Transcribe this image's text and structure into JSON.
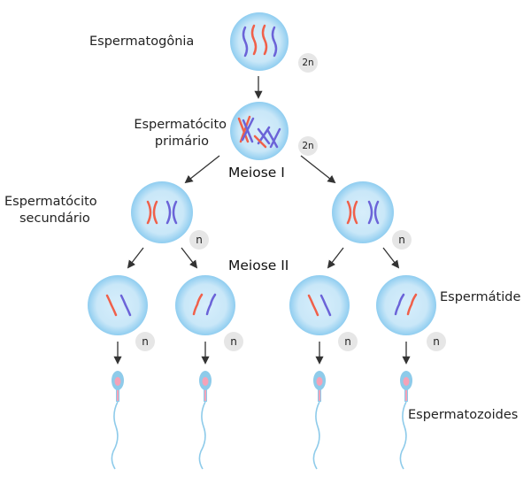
{
  "title": "",
  "stages": {
    "meiose1": "Meiose I",
    "meiose2": "Meiose II"
  },
  "labels": {
    "espermatogonia": "Espermatogônia",
    "espermatocito_primario_1": "Espermatócito",
    "espermatocito_primario_2": "primário",
    "espermatocito_secundario_1": "Espermatócito",
    "espermatocito_secundario_2": "secundário",
    "espermatide": "Espermátide",
    "espermatozoides": "Espermatozoides"
  },
  "ploidy": {
    "diploid": "2n",
    "haploid": "n"
  },
  "colors": {
    "cell_fill": "#cde8f7",
    "cell_edge": "#9fd3f0",
    "chromosome_red": "#f0604a",
    "chromosome_blue": "#6b63d8",
    "badge": "#e6e6e6",
    "sperm_head": "#8ecbea",
    "sperm_nucleus": "#f4a2b8"
  }
}
